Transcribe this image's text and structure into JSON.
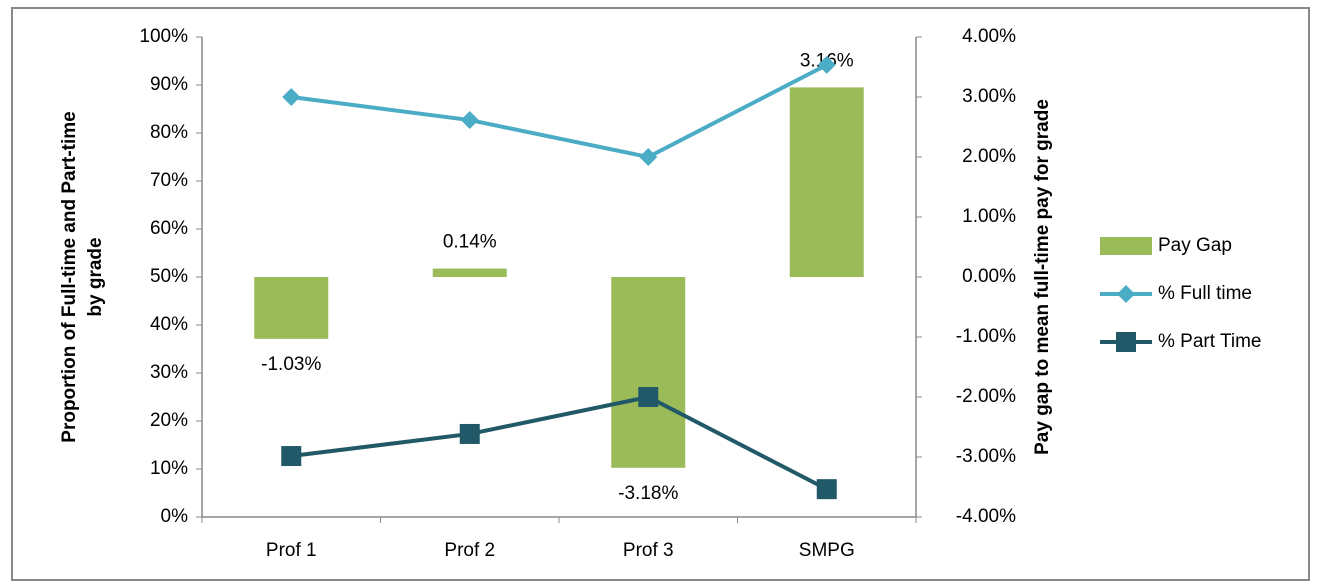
{
  "chart_data": {
    "type": "combo",
    "categories": [
      "Prof 1",
      "Prof 2",
      "Prof 3",
      "SMPG"
    ],
    "ylabel": [
      "Proportion of Full-time and Part-time",
      "by grade"
    ],
    "y2label": "Pay gap to mean full-time pay for grade",
    "ylim": [
      0,
      100
    ],
    "yticks": [
      {
        "value": 0,
        "label": "0%"
      },
      {
        "value": 10,
        "label": "10%"
      },
      {
        "value": 20,
        "label": "20%"
      },
      {
        "value": 30,
        "label": "30%"
      },
      {
        "value": 40,
        "label": "40%"
      },
      {
        "value": 50,
        "label": "50%"
      },
      {
        "value": 60,
        "label": "60%"
      },
      {
        "value": 70,
        "label": "70%"
      },
      {
        "value": 80,
        "label": "80%"
      },
      {
        "value": 90,
        "label": "90%"
      },
      {
        "value": 100,
        "label": "100%"
      }
    ],
    "y2lim": [
      -4,
      4
    ],
    "y2ticks": [
      {
        "value": -4,
        "label": "-4.00%"
      },
      {
        "value": -3,
        "label": "-3.00%"
      },
      {
        "value": -2,
        "label": "-2.00%"
      },
      {
        "value": -1,
        "label": "-1.00%"
      },
      {
        "value": 0,
        "label": "0.00%"
      },
      {
        "value": 1,
        "label": "1.00%"
      },
      {
        "value": 2,
        "label": "2.00%"
      },
      {
        "value": 3,
        "label": "3.00%"
      },
      {
        "value": 4,
        "label": "4.00%"
      }
    ],
    "legend": "right",
    "series": [
      {
        "name": "Pay Gap",
        "type": "bar",
        "axis": "y2",
        "color": "#9bbb59",
        "values": [
          -1.03,
          0.14,
          -3.18,
          3.16
        ],
        "value_labels": [
          "-1.03%",
          "0.14%",
          "-3.18%",
          "3.16%"
        ]
      },
      {
        "name": "% Full time",
        "type": "line",
        "marker": "diamond",
        "color": "#4bacc6",
        "values": [
          87.5,
          82.7,
          75,
          94.2
        ]
      },
      {
        "name": "% Part Time",
        "type": "line",
        "marker": "square",
        "color": "#215968",
        "values": [
          12.7,
          17.3,
          25,
          5.8
        ]
      }
    ]
  }
}
